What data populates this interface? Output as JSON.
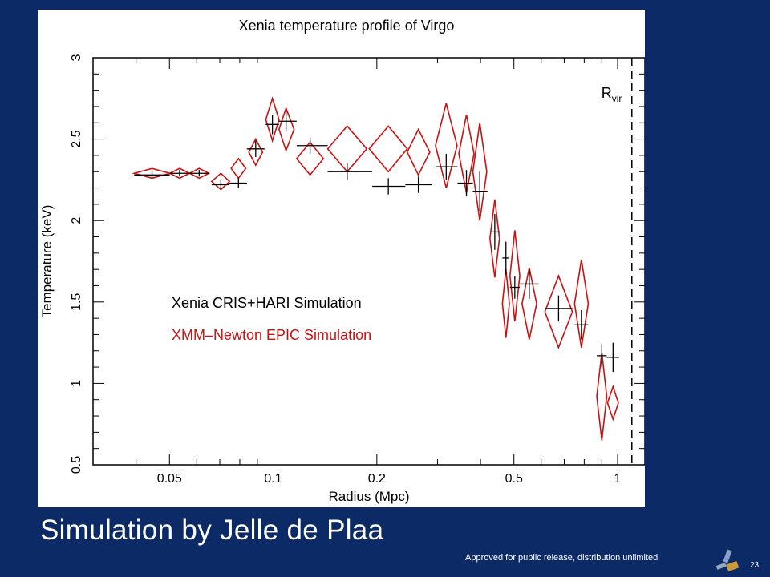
{
  "slide": {
    "caption": "Simulation by Jelle de Plaa",
    "release_note": "Approved for public release, distribution unlimited",
    "page_number": "23",
    "background_color": "#0b2a66"
  },
  "chart_data": {
    "type": "scatter",
    "title": "Xenia temperature profile of Virgo",
    "xlabel": "Radius (Mpc)",
    "ylabel": "Temperature (keV)",
    "xscale": "log",
    "xlim": [
      0.03,
      1.2
    ],
    "ylim": [
      0.5,
      3
    ],
    "xticks": [
      {
        "value": 0.05,
        "label": "0.05"
      },
      {
        "value": 0.1,
        "label": "0.1"
      },
      {
        "value": 0.2,
        "label": "0.2"
      },
      {
        "value": 0.5,
        "label": "0.5"
      },
      {
        "value": 1,
        "label": "1"
      }
    ],
    "yticks": [
      {
        "value": 0.5,
        "label": "0.5"
      },
      {
        "value": 1,
        "label": "1"
      },
      {
        "value": 1.5,
        "label": "1.5"
      },
      {
        "value": 2,
        "label": "2"
      },
      {
        "value": 2.5,
        "label": "2.5"
      },
      {
        "value": 3,
        "label": "3"
      }
    ],
    "rvir": {
      "x": 1.1,
      "label": "R",
      "subscript": "vir"
    },
    "series": [
      {
        "name": "Xenia CRIS+HARI Simulation",
        "color": "#000000",
        "marker": "cross",
        "points": [
          {
            "x": 0.0445,
            "y": 2.28,
            "x_lo": 0.0395,
            "x_hi": 0.0501,
            "y_err": 0.02
          },
          {
            "x": 0.0535,
            "y": 2.29,
            "x_lo": 0.0501,
            "x_hi": 0.0572,
            "y_err": 0.02
          },
          {
            "x": 0.061,
            "y": 2.29,
            "x_lo": 0.0572,
            "x_hi": 0.0651,
            "y_err": 0.02
          },
          {
            "x": 0.0705,
            "y": 2.22,
            "x_lo": 0.0663,
            "x_hi": 0.0747,
            "y_err": 0.03
          },
          {
            "x": 0.0793,
            "y": 2.23,
            "x_lo": 0.0747,
            "x_hi": 0.0839,
            "y_err": 0.03
          },
          {
            "x": 0.089,
            "y": 2.44,
            "x_lo": 0.0839,
            "x_hi": 0.0944,
            "y_err": 0.05
          },
          {
            "x": 0.0995,
            "y": 2.59,
            "x_lo": 0.0952,
            "x_hi": 0.104,
            "y_err": 0.06
          },
          {
            "x": 0.109,
            "y": 2.61,
            "x_lo": 0.104,
            "x_hi": 0.117,
            "y_err": 0.06
          },
          {
            "x": 0.128,
            "y": 2.46,
            "x_lo": 0.117,
            "x_hi": 0.144,
            "y_err": 0.05
          },
          {
            "x": 0.164,
            "y": 2.3,
            "x_lo": 0.144,
            "x_hi": 0.194,
            "y_err": 0.05
          },
          {
            "x": 0.216,
            "y": 2.21,
            "x_lo": 0.194,
            "x_hi": 0.242,
            "y_err": 0.05
          },
          {
            "x": 0.264,
            "y": 2.22,
            "x_lo": 0.242,
            "x_hi": 0.289,
            "y_err": 0.05
          },
          {
            "x": 0.318,
            "y": 2.33,
            "x_lo": 0.296,
            "x_hi": 0.343,
            "y_err": 0.08
          },
          {
            "x": 0.364,
            "y": 2.23,
            "x_lo": 0.343,
            "x_hi": 0.38,
            "y_err": 0.08
          },
          {
            "x": 0.398,
            "y": 2.18,
            "x_lo": 0.38,
            "x_hi": 0.419,
            "y_err": 0.12
          },
          {
            "x": 0.44,
            "y": 1.93,
            "x_lo": 0.426,
            "x_hi": 0.454,
            "y_err": 0.11
          },
          {
            "x": 0.474,
            "y": 1.77,
            "x_lo": 0.463,
            "x_hi": 0.485,
            "y_err": 0.1
          },
          {
            "x": 0.503,
            "y": 1.59,
            "x_lo": 0.487,
            "x_hi": 0.52,
            "y_err": 0.07
          },
          {
            "x": 0.554,
            "y": 1.61,
            "x_lo": 0.52,
            "x_hi": 0.59,
            "y_err": 0.09
          },
          {
            "x": 0.674,
            "y": 1.46,
            "x_lo": 0.615,
            "x_hi": 0.739,
            "y_err": 0.08
          },
          {
            "x": 0.785,
            "y": 1.36,
            "x_lo": 0.75,
            "x_hi": 0.822,
            "y_err": 0.09
          },
          {
            "x": 0.9,
            "y": 1.17,
            "x_lo": 0.87,
            "x_hi": 0.93,
            "y_err": 0.07
          },
          {
            "x": 0.97,
            "y": 1.16,
            "x_lo": 0.93,
            "x_hi": 1.01,
            "y_err": 0.09
          }
        ]
      },
      {
        "name": "XMM–Newton EPIC Simulation",
        "color": "#cc1111",
        "marker": "diamond",
        "points": [
          {
            "x": 0.0445,
            "y": 2.29,
            "x_lo": 0.0395,
            "x_hi": 0.0501,
            "y_err": 0.03
          },
          {
            "x": 0.0535,
            "y": 2.29,
            "x_lo": 0.0501,
            "x_hi": 0.0572,
            "y_err": 0.03
          },
          {
            "x": 0.061,
            "y": 2.29,
            "x_lo": 0.0572,
            "x_hi": 0.0651,
            "y_err": 0.03
          },
          {
            "x": 0.0705,
            "y": 2.24,
            "x_lo": 0.0663,
            "x_hi": 0.0747,
            "y_err": 0.05
          },
          {
            "x": 0.0793,
            "y": 2.32,
            "x_lo": 0.0755,
            "x_hi": 0.0833,
            "y_err": 0.06
          },
          {
            "x": 0.089,
            "y": 2.42,
            "x_lo": 0.085,
            "x_hi": 0.0932,
            "y_err": 0.08
          },
          {
            "x": 0.0995,
            "y": 2.62,
            "x_lo": 0.0952,
            "x_hi": 0.104,
            "y_err": 0.13
          },
          {
            "x": 0.109,
            "y": 2.56,
            "x_lo": 0.104,
            "x_hi": 0.115,
            "y_err": 0.13
          },
          {
            "x": 0.128,
            "y": 2.38,
            "x_lo": 0.117,
            "x_hi": 0.14,
            "y_err": 0.1
          },
          {
            "x": 0.164,
            "y": 2.44,
            "x_lo": 0.144,
            "x_hi": 0.187,
            "y_err": 0.14
          },
          {
            "x": 0.216,
            "y": 2.44,
            "x_lo": 0.19,
            "x_hi": 0.245,
            "y_err": 0.14
          },
          {
            "x": 0.264,
            "y": 2.42,
            "x_lo": 0.245,
            "x_hi": 0.285,
            "y_err": 0.14
          },
          {
            "x": 0.318,
            "y": 2.46,
            "x_lo": 0.296,
            "x_hi": 0.342,
            "y_err": 0.26
          },
          {
            "x": 0.364,
            "y": 2.41,
            "x_lo": 0.346,
            "x_hi": 0.383,
            "y_err": 0.24
          },
          {
            "x": 0.398,
            "y": 2.3,
            "x_lo": 0.38,
            "x_hi": 0.417,
            "y_err": 0.3
          },
          {
            "x": 0.44,
            "y": 1.89,
            "x_lo": 0.426,
            "x_hi": 0.454,
            "y_err": 0.24
          },
          {
            "x": 0.474,
            "y": 1.49,
            "x_lo": 0.463,
            "x_hi": 0.485,
            "y_err": 0.21
          },
          {
            "x": 0.503,
            "y": 1.66,
            "x_lo": 0.487,
            "x_hi": 0.52,
            "y_err": 0.28
          },
          {
            "x": 0.554,
            "y": 1.49,
            "x_lo": 0.528,
            "x_hi": 0.582,
            "y_err": 0.22
          },
          {
            "x": 0.674,
            "y": 1.44,
            "x_lo": 0.615,
            "x_hi": 0.739,
            "y_err": 0.22
          },
          {
            "x": 0.785,
            "y": 1.49,
            "x_lo": 0.75,
            "x_hi": 0.822,
            "y_err": 0.27
          },
          {
            "x": 0.9,
            "y": 0.92,
            "x_lo": 0.87,
            "x_hi": 0.93,
            "y_err": 0.27
          },
          {
            "x": 0.97,
            "y": 0.88,
            "x_lo": 0.935,
            "x_hi": 1.005,
            "y_err": 0.1
          }
        ]
      }
    ]
  }
}
